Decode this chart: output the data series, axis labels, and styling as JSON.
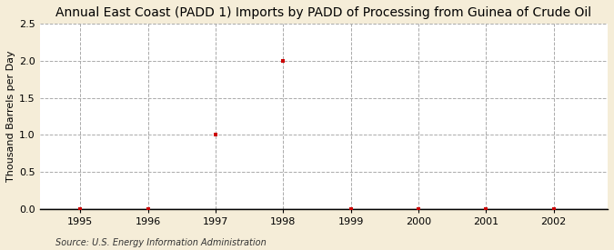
{
  "title": "Annual East Coast (PADD 1) Imports by PADD of Processing from Guinea of Crude Oil",
  "ylabel": "Thousand Barrels per Day",
  "source": "Source: U.S. Energy Information Administration",
  "background_color": "#F5EDD8",
  "plot_background_color": "#FFFFFF",
  "x_data": [
    1995,
    1996,
    1997,
    1998,
    1999,
    2000,
    2001,
    2002
  ],
  "y_data": [
    0,
    0,
    1.0,
    2.0,
    0,
    0,
    0,
    0
  ],
  "xlim": [
    1994.4,
    2002.8
  ],
  "ylim": [
    0.0,
    2.5
  ],
  "yticks": [
    0.0,
    0.5,
    1.0,
    1.5,
    2.0,
    2.5
  ],
  "xticks": [
    1995,
    1996,
    1997,
    1998,
    1999,
    2000,
    2001,
    2002
  ],
  "marker_color": "#CC0000",
  "marker_style": "s",
  "marker_size": 3,
  "grid_color": "#AAAAAA",
  "grid_linestyle": "--",
  "title_fontsize": 10,
  "label_fontsize": 8,
  "tick_fontsize": 8,
  "source_fontsize": 7
}
